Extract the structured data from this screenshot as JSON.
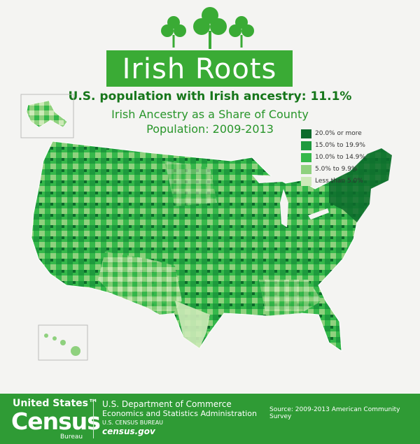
{
  "title": "Irish Roots",
  "headline": "U.S. population with Irish ancestry: 11.1%",
  "subtitle": "Irish Ancestry as a Share of County Population: 2009-2013",
  "colors": {
    "brand_green": "#3aab35",
    "footer_green": "#2f9b35",
    "headline_green": "#16761a",
    "class_20_plus": "#0d6b2b",
    "class_15_19": "#1e9a3d",
    "class_10_14": "#35b84a",
    "class_5_9": "#8fd17e",
    "class_lt5": "#cdeab8"
  },
  "legend": [
    {
      "label": "20.0% or more",
      "color": "#0d6b2b"
    },
    {
      "label": "15.0% to 19.9%",
      "color": "#1e9a3d"
    },
    {
      "label": "10.0% to 14.9%",
      "color": "#35b84a"
    },
    {
      "label": "5.0% to 9.9%",
      "color": "#8fd17e"
    },
    {
      "label": "Less than 5.0%",
      "color": "#cdeab8"
    }
  ],
  "footer": {
    "logo_top": "United States™",
    "logo_main": "Census",
    "logo_sub": "Bureau",
    "dept": "U.S. Department of Commerce",
    "admin": "Economics and Statistics Administration",
    "bureau": "U.S. CENSUS BUREAU",
    "website": "census.gov",
    "source": "Source: 2009-2013 American Community Survey"
  },
  "icons": [
    "shamrock-icon",
    "census-logo"
  ]
}
